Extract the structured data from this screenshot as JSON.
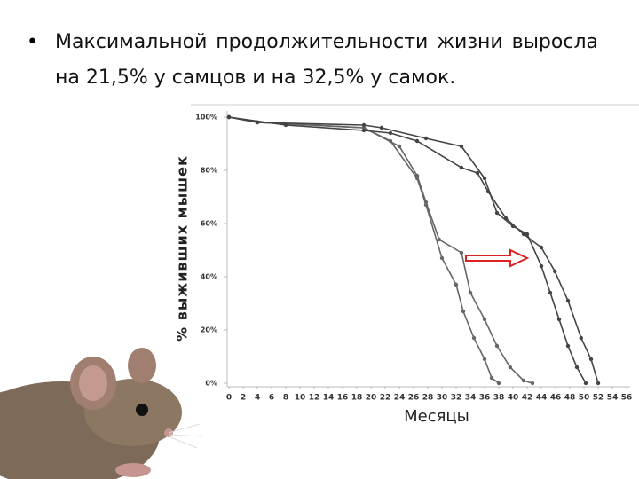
{
  "bullet": "Максимальной продолжительности жизни выросла на 21,5% у самцов и на 32,5% у самок.",
  "chart_data": {
    "type": "line",
    "ylabel": "% выживших мышек",
    "xlabel": "Месяцы",
    "xlim": [
      0,
      56
    ],
    "ylim": [
      0,
      100
    ],
    "xticks": [
      0,
      2,
      4,
      6,
      8,
      10,
      12,
      14,
      16,
      18,
      20,
      22,
      24,
      26,
      28,
      30,
      32,
      34,
      36,
      38,
      40,
      42,
      44,
      46,
      48,
      50,
      52,
      54,
      56
    ],
    "yticks": [
      {
        "value": 0,
        "label": "0%"
      },
      {
        "value": 20,
        "label": "20%"
      },
      {
        "value": 40,
        "label": "40%"
      },
      {
        "value": 60,
        "label": "60%"
      },
      {
        "value": 80,
        "label": "80%"
      },
      {
        "value": 100,
        "label": "100%"
      }
    ],
    "grid": false,
    "series": [
      {
        "color": "#666666",
        "x": [
          0,
          4,
          19,
          22.75,
          26.5,
          27.75,
          30,
          32,
          33,
          34.5,
          36,
          37,
          38
        ],
        "values": [
          100,
          98,
          96,
          91,
          77,
          67,
          47,
          37,
          27,
          17,
          9,
          2,
          0
        ]
      },
      {
        "color": "#666666",
        "x": [
          0,
          4,
          19,
          24,
          26.5,
          27.75,
          29.6,
          32.75,
          34,
          36,
          37.75,
          39.6,
          41.5,
          42.75
        ],
        "values": [
          100,
          98,
          96,
          89,
          78,
          68,
          54,
          49,
          34,
          24,
          14,
          6,
          1,
          0
        ]
      },
      {
        "color": "#444444",
        "x": [
          0,
          4,
          19,
          21.5,
          27.75,
          32.75,
          36,
          37.75,
          40,
          42,
          44,
          45.25,
          46.5,
          47.75,
          49,
          50.25
        ],
        "values": [
          100,
          98,
          97,
          96,
          92,
          89,
          77,
          64,
          59,
          56,
          44,
          34,
          24,
          14,
          6,
          0
        ]
      },
      {
        "color": "#444444",
        "x": [
          0,
          8,
          19,
          22.75,
          26.5,
          32.75,
          35,
          36.5,
          39,
          41.5,
          44,
          45.9,
          47.75,
          49.6,
          51,
          52
        ],
        "values": [
          100,
          97,
          95,
          94,
          91,
          81,
          79,
          72,
          62,
          56,
          51,
          42,
          31,
          17,
          9,
          0
        ]
      }
    ]
  }
}
